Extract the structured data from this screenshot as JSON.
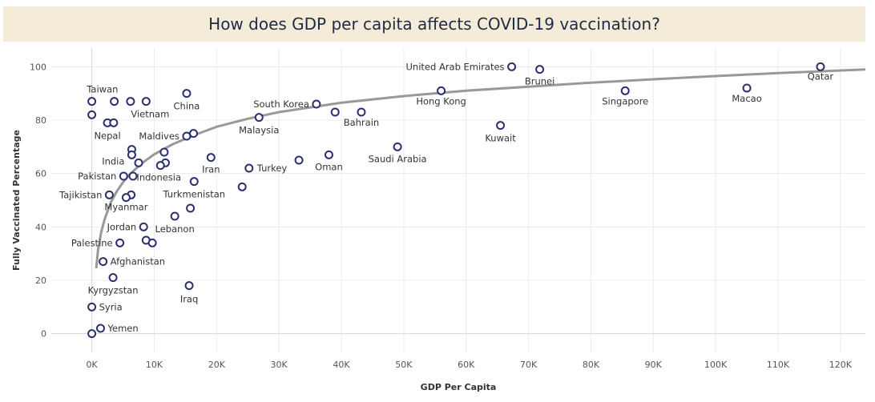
{
  "chart_data": {
    "type": "scatter",
    "title": "How does GDP per capita affects COVID-19 vaccination?",
    "xlabel": "GDP Per Capita",
    "ylabel": "Fully Vaccinated Percentage",
    "xlim": [
      -6500,
      124000
    ],
    "ylim": [
      -7,
      107
    ],
    "x_ticks": [
      0,
      10000,
      20000,
      30000,
      40000,
      50000,
      60000,
      70000,
      80000,
      90000,
      100000,
      110000,
      120000
    ],
    "x_tick_labels": [
      "0K",
      "10K",
      "20K",
      "30K",
      "40K",
      "50K",
      "60K",
      "70K",
      "80K",
      "90K",
      "100K",
      "110K",
      "120K"
    ],
    "y_ticks": [
      0,
      20,
      40,
      60,
      80,
      100
    ],
    "y_tick_labels": [
      "0",
      "20",
      "40",
      "60",
      "80",
      "100"
    ],
    "grid": true,
    "marker_color": "#2b3170",
    "trend_color": "#999999",
    "trend_line": {
      "type": "logarithmic",
      "x": [
        700,
        1000,
        1500,
        2000,
        3000,
        4000,
        5000,
        6000,
        8000,
        10000,
        13000,
        16000,
        20000,
        25000,
        30000,
        40000,
        50000,
        60000,
        70000,
        80000,
        90000,
        100000,
        110000,
        124000
      ],
      "y": [
        24.5,
        31.5,
        38,
        42.5,
        49,
        53.3,
        56.7,
        59.5,
        63.8,
        67.2,
        71,
        74,
        77.5,
        80.5,
        83,
        86.5,
        89,
        91,
        92.5,
        94,
        95.3,
        96.5,
        97.6,
        99
      ]
    },
    "points": [
      {
        "x": 116800,
        "y": 100,
        "label": "Qatar"
      },
      {
        "x": 67300,
        "y": 100,
        "label": "United Arab Emirates"
      },
      {
        "x": 71800,
        "y": 99,
        "label": "Brunei"
      },
      {
        "x": 105000,
        "y": 92,
        "label": "Macao"
      },
      {
        "x": 85500,
        "y": 91,
        "label": "Singapore"
      },
      {
        "x": 56000,
        "y": 91,
        "label": "Hong Kong"
      },
      {
        "x": 65500,
        "y": 78,
        "label": "Kuwait"
      },
      {
        "x": 49000,
        "y": 70,
        "label": "Saudi Arabia"
      },
      {
        "x": 43200,
        "y": 83,
        "label": "Bahrain"
      },
      {
        "x": 39000,
        "y": 83,
        "label": ""
      },
      {
        "x": 36000,
        "y": 86,
        "label": "South Korea"
      },
      {
        "x": 38000,
        "y": 67,
        "label": "Oman"
      },
      {
        "x": 33200,
        "y": 65,
        "label": ""
      },
      {
        "x": 26800,
        "y": 81,
        "label": "Malaysia"
      },
      {
        "x": 25200,
        "y": 62,
        "label": "Turkey"
      },
      {
        "x": 24100,
        "y": 55,
        "label": ""
      },
      {
        "x": 19100,
        "y": 66,
        "label": "Iran"
      },
      {
        "x": 15200,
        "y": 90,
        "label": "China"
      },
      {
        "x": 16300,
        "y": 75,
        "label": ""
      },
      {
        "x": 15200,
        "y": 74,
        "label": "Maldives"
      },
      {
        "x": 11600,
        "y": 68,
        "label": ""
      },
      {
        "x": 11800,
        "y": 64,
        "label": ""
      },
      {
        "x": 11000,
        "y": 63,
        "label": "Indonesia"
      },
      {
        "x": 16400,
        "y": 57,
        "label": "Turkmenistan"
      },
      {
        "x": 15800,
        "y": 47,
        "label": ""
      },
      {
        "x": 13300,
        "y": 44,
        "label": "Lebanon"
      },
      {
        "x": 15600,
        "y": 18,
        "label": "Iraq"
      },
      {
        "x": 8700,
        "y": 87,
        "label": "Vietnam"
      },
      {
        "x": 6200,
        "y": 87,
        "label": "Taiwan"
      },
      {
        "x": 3600,
        "y": 87,
        "label": ""
      },
      {
        "x": 0,
        "y": 87,
        "label": ""
      },
      {
        "x": 0,
        "y": 82,
        "label": ""
      },
      {
        "x": 2500,
        "y": 79,
        "label": "Nepal"
      },
      {
        "x": 3500,
        "y": 79,
        "label": ""
      },
      {
        "x": 6400,
        "y": 69,
        "label": ""
      },
      {
        "x": 6400,
        "y": 67,
        "label": "India"
      },
      {
        "x": 7500,
        "y": 64,
        "label": ""
      },
      {
        "x": 5100,
        "y": 59,
        "label": "Pakistan"
      },
      {
        "x": 6600,
        "y": 59,
        "label": ""
      },
      {
        "x": 2800,
        "y": 52,
        "label": "Tajikistan"
      },
      {
        "x": 6300,
        "y": 52,
        "label": ""
      },
      {
        "x": 5500,
        "y": 51,
        "label": "Myanmar"
      },
      {
        "x": 8300,
        "y": 40,
        "label": "Jordan"
      },
      {
        "x": 8700,
        "y": 35,
        "label": ""
      },
      {
        "x": 9700,
        "y": 34,
        "label": ""
      },
      {
        "x": 4500,
        "y": 34,
        "label": "Palestine"
      },
      {
        "x": 1800,
        "y": 27,
        "label": "Afghanistan"
      },
      {
        "x": 3400,
        "y": 21,
        "label": "Kyrgyzstan"
      },
      {
        "x": 0,
        "y": 10,
        "label": "Syria"
      },
      {
        "x": 1400,
        "y": 2,
        "label": "Yemen"
      },
      {
        "x": 0,
        "y": 0,
        "label": ""
      }
    ]
  }
}
